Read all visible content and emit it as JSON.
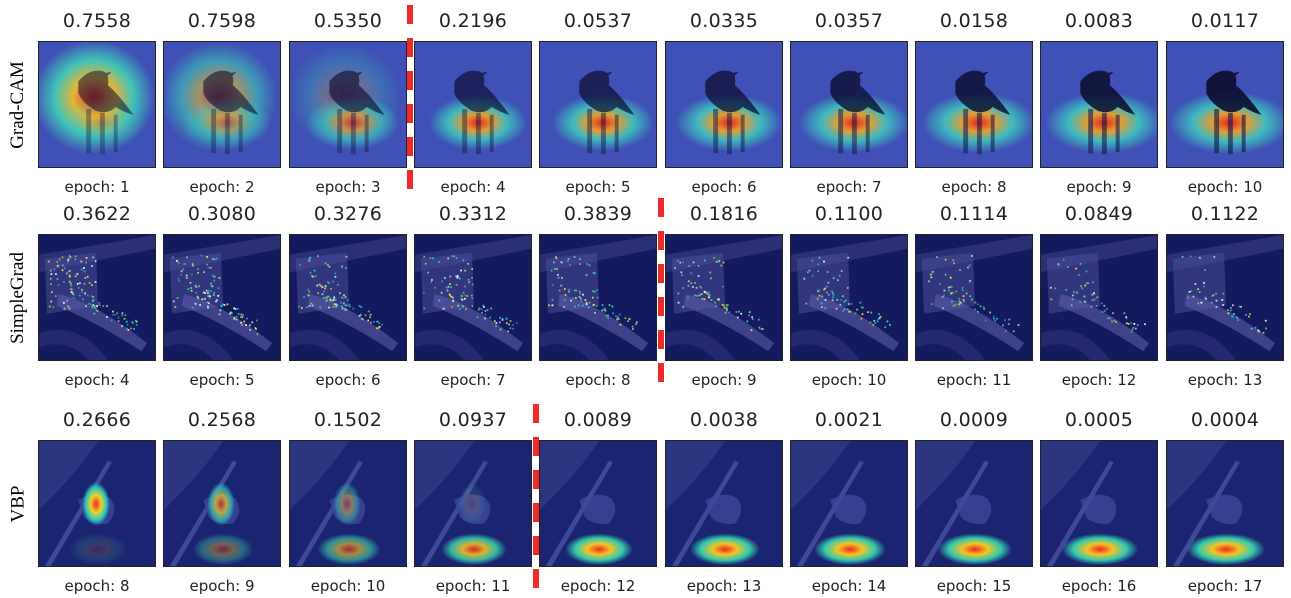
{
  "rows": [
    {
      "method": "Grad-CAM",
      "scores": [
        "0.7558",
        "0.7598",
        "0.5350",
        "0.2196",
        "0.0537",
        "0.0335",
        "0.0357",
        "0.0158",
        "0.0083",
        "0.0117"
      ],
      "epochs": [
        "epoch: 1",
        "epoch: 2",
        "epoch: 3",
        "epoch: 4",
        "epoch: 5",
        "epoch: 6",
        "epoch: 7",
        "epoch: 8",
        "epoch: 9",
        "epoch: 10"
      ],
      "heatmap_kind": "gradcam",
      "divider_after_column": 3
    },
    {
      "method": "SimpleGrad",
      "scores": [
        "0.3622",
        "0.3080",
        "0.3276",
        "0.3312",
        "0.3839",
        "0.1816",
        "0.1100",
        "0.1114",
        "0.0849",
        "0.1122"
      ],
      "epochs": [
        "epoch: 4",
        "epoch: 5",
        "epoch: 6",
        "epoch: 7",
        "epoch: 8",
        "epoch: 9",
        "epoch: 10",
        "epoch: 11",
        "epoch: 12",
        "epoch: 13"
      ],
      "heatmap_kind": "simplegrad",
      "divider_after_column": 5
    },
    {
      "method": "VBP",
      "scores": [
        "0.2666",
        "0.2568",
        "0.1502",
        "0.0937",
        "0.0089",
        "0.0038",
        "0.0021",
        "0.0009",
        "0.0005",
        "0.0004"
      ],
      "epochs": [
        "epoch: 8",
        "epoch: 9",
        "epoch: 10",
        "epoch: 11",
        "epoch: 12",
        "epoch: 13",
        "epoch: 14",
        "epoch: 15",
        "epoch: 16",
        "epoch: 17"
      ],
      "heatmap_kind": "vbp",
      "divider_after_column": 4
    }
  ],
  "colors": {
    "divider": "#ee2b2b",
    "heatmap_low": "#1e2a8c",
    "heatmap_mid": "#1fd0c0",
    "heatmap_high": "#ee2020"
  }
}
